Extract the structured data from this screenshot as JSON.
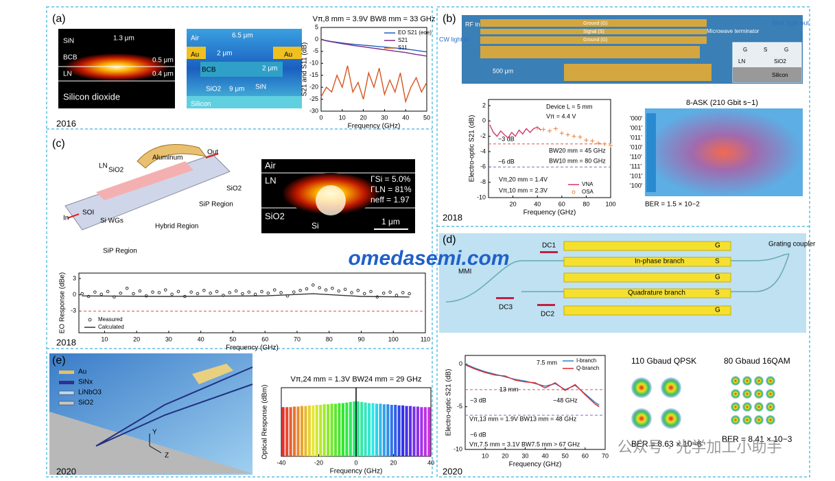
{
  "watermark": "omedasemi.com",
  "footer_watermark": "公众号 · 光学加工小助手",
  "panels": [
    {
      "label": "(a)",
      "year": "2016",
      "texts": [
        "SiN",
        "BCB",
        "LN",
        "1.3 μm",
        "0.5 μm",
        "0.4 μm",
        "Silicon dioxide",
        "Air",
        "Au",
        "Au",
        "6.5 μm",
        "2 μm",
        "2 μm",
        "BCB",
        "SiO2",
        "9 μm",
        "SiN",
        "Silicon"
      ],
      "chart": {
        "type": "line",
        "title": "Vπ,8 mm = 3.9V   BW8 mm = 33 GHz",
        "xlabel": "Frequency (GHz)",
        "ylabel": "S21 and S11 (dB)",
        "xlim": [
          0,
          50
        ],
        "ylim": [
          -30,
          5
        ],
        "xticks": [
          0,
          10,
          20,
          30,
          40,
          50
        ],
        "yticks": [
          5,
          0,
          -5,
          -10,
          -15,
          -20,
          -25,
          -30
        ],
        "legend": "upper right",
        "series": [
          {
            "name": "EO S21 (eoe)",
            "color": "#1f5fbf",
            "x": [
              0,
              2.5,
              5,
              7.5,
              10,
              12.5,
              15,
              17.5,
              20,
              22.5,
              25,
              27.5,
              30,
              32.5,
              35,
              37.5,
              40,
              42.5,
              45,
              47.5,
              50
            ],
            "values": [
              0,
              -0.5,
              -0.9,
              -1.2,
              -1.5,
              -1.8,
              -2.0,
              -2.2,
              -2.4,
              -2.6,
              -2.8,
              -3.0,
              -3.2,
              -3.4,
              -3.6,
              -3.8,
              -4.0,
              -4.3,
              -4.6,
              -4.9,
              -5.2
            ]
          },
          {
            "name": "S21",
            "color": "#7a2a8a",
            "x": [
              0,
              2.5,
              5,
              7.5,
              10,
              12.5,
              15,
              17.5,
              20,
              22.5,
              25,
              27.5,
              30,
              32.5,
              35,
              37.5,
              40,
              42.5,
              45,
              47.5,
              50
            ],
            "values": [
              0,
              -0.6,
              -1.0,
              -1.4,
              -1.8,
              -2.1,
              -2.5,
              -2.8,
              -3.1,
              -3.4,
              -3.7,
              -4.0,
              -4.3,
              -4.6,
              -4.9,
              -5.2,
              -5.5,
              -5.9,
              -6.3,
              -6.6,
              -7.0
            ]
          },
          {
            "name": "S11",
            "color": "#d9531e",
            "x": [
              0,
              2.5,
              5,
              7.5,
              10,
              12.5,
              15,
              17.5,
              20,
              22.5,
              25,
              27.5,
              30,
              32.5,
              35,
              37.5,
              40,
              42.5,
              45,
              47.5,
              50
            ],
            "values": [
              -24,
              -20,
              -22,
              -15,
              -20,
              -11,
              -22,
              -18,
              -25,
              -14,
              -20,
              -12,
              -23,
              -17,
              -22,
              -14,
              -26,
              -20,
              -16,
              -22,
              -18
            ]
          }
        ]
      }
    },
    {
      "label": "(b)",
      "year": "2018",
      "texts": [
        "RF in",
        "CW light in",
        "Ground (G)",
        "Signal (S)",
        "Ground (G)",
        "Microwave terminator",
        "Mod. light out",
        "500 μm",
        "G",
        "S",
        "G",
        "LN",
        "SiO2",
        "Silicon",
        "8-ASK (210 Gbit s−1)",
        "'000'",
        "'001'",
        "'011'",
        "'010'",
        "'110'",
        "'111'",
        "'101'",
        "'100'",
        "BER = 1.5 × 10−2"
      ],
      "chart": {
        "type": "line",
        "xlabel": "Frequency (GHz)",
        "ylabel": "Electro-optic S21 (dB)",
        "xlim": [
          0,
          100
        ],
        "ylim": [
          -10,
          2.8
        ],
        "xticks": [
          20,
          40,
          60,
          80,
          100
        ],
        "yticks": [
          2,
          0,
          -2,
          -4,
          -6,
          -8,
          -10
        ],
        "legend": "lower right",
        "ref_lines": [
          -3,
          -6
        ],
        "annotations": [
          "Device L = 5 mm",
          "Vπ = 4.4 V",
          "−3 dB",
          "−6 dB",
          "BW20 mm = 45 GHz",
          "BW10 mm = 80 GHz",
          "Vπ,20 mm = 1.4V",
          "Vπ,10 mm = 2.3V"
        ],
        "series": [
          {
            "name": "VNA",
            "color": "#d6336c",
            "x": [
              1,
              4,
              7,
              10,
              13,
              16,
              19,
              22,
              25,
              28,
              31,
              34,
              37,
              40,
              43
            ],
            "values": [
              -0.5,
              -1.5,
              -2.0,
              -1.3,
              -1.8,
              -2.2,
              -1.5,
              -2.0,
              -1.2,
              -1.7,
              -1.0,
              -1.5,
              -1.0,
              -0.8,
              -1.2
            ]
          },
          {
            "name": "OSA",
            "color": "#e8833a",
            "marker": "plus",
            "x": [
              40,
              45,
              50,
              55,
              60,
              65,
              70,
              75,
              80,
              85,
              90,
              95,
              100
            ],
            "values": [
              -0.9,
              -1.1,
              -1.3,
              -1.0,
              -1.6,
              -1.8,
              -2.0,
              -2.1,
              -2.5,
              -2.6,
              -2.9,
              -3.0,
              -3.2
            ]
          }
        ]
      }
    },
    {
      "label": "(c)",
      "year": "2018",
      "texts": [
        "Aluminum",
        "SiO2",
        "LN",
        "Out",
        "SiO2",
        "SOI",
        "In",
        "Si WGs",
        "SiP Region",
        "Hybrid Region",
        "SiP Region",
        "Air",
        "LN",
        "SiO2",
        "Si",
        "ΓSi = 5.0%",
        "ΓLN = 81%",
        "neff = 1.97",
        "1 μm"
      ],
      "chart": {
        "type": "line",
        "xlabel": "Frequency (GHz)",
        "ylabel": "EO Response (dBe)",
        "xlim": [
          2,
          110
        ],
        "ylim": [
          -7,
          4
        ],
        "xticks": [
          10,
          20,
          30,
          40,
          50,
          60,
          70,
          80,
          90,
          100,
          110
        ],
        "yticks": [
          3,
          0,
          -3
        ],
        "legend": "lower left",
        "ref_lines": [
          -3
        ],
        "series": [
          {
            "name": "Measured",
            "color": "#333333",
            "marker": "circle",
            "x": [
              3,
              5,
              7,
              9,
              11,
              13,
              15,
              17,
              19,
              21,
              23,
              25,
              27,
              29,
              31,
              33,
              35,
              37,
              39,
              41,
              43,
              45,
              47,
              49,
              51,
              53,
              55,
              57,
              59,
              61,
              63,
              65,
              67,
              69,
              71,
              73,
              75,
              77,
              79,
              81,
              83,
              85,
              87,
              89,
              91,
              93,
              95,
              97,
              99,
              101,
              103,
              105
            ],
            "values": [
              0.2,
              -0.3,
              0.5,
              0.1,
              0.6,
              -0.4,
              0.3,
              1.2,
              0.2,
              0.7,
              -0.2,
              0.5,
              0.4,
              0.9,
              0.1,
              0.6,
              -0.3,
              0.5,
              0.2,
              0.8,
              0.3,
              0.6,
              -0.1,
              0.4,
              0.7,
              0.2,
              0.5,
              0.1,
              0.6,
              0.3,
              0.9,
              0.4,
              -0.2,
              0.5,
              0.8,
              1.1,
              1.8,
              1.3,
              0.9,
              1.2,
              0.7,
              1.0,
              0.4,
              0.8,
              0.2,
              0.6,
              -0.4,
              0.3,
              0.5,
              -0.1,
              0.4,
              0.2
            ]
          },
          {
            "name": "Calculated",
            "color": "#333333",
            "x": [
              3,
              30,
              60,
              75,
              90,
              105
            ],
            "values": [
              -0.2,
              -0.3,
              -0.2,
              0.2,
              -0.3,
              -0.4
            ]
          }
        ]
      }
    },
    {
      "label": "(d)",
      "year": "2020",
      "texts": [
        "MMI",
        "DC1",
        "DC3",
        "DC2",
        "G",
        "S",
        "G",
        "S",
        "G",
        "In-phase branch",
        "Quadrature branch",
        "Grating coupler",
        "110 Gbaud QPSK",
        "80 Gbaud 16QAM",
        "BER = 8.63 × 10−6",
        "BER = 8.41 × 10−3"
      ],
      "chart": {
        "type": "line",
        "xlabel": "Frequency (GHz)",
        "ylabel": "Electro-optic S21 (dB)",
        "xlim": [
          0,
          70
        ],
        "ylim": [
          -10,
          1
        ],
        "xticks": [
          10,
          20,
          30,
          40,
          50,
          60,
          70
        ],
        "yticks": [
          0,
          -5,
          -10
        ],
        "legend": "upper right",
        "ref_lines": [
          -3,
          -6
        ],
        "annotations": [
          "7.5 mm",
          "13 mm",
          "−3 dB",
          "~48 GHz",
          "Vπ,13 mm = 1.9V  BW13 mm = 48 GHz",
          "−6 dB",
          "Vπ,7.5 mm = 3.1V  BW7.5 mm > 67 GHz"
        ],
        "series": [
          {
            "name": "I-branch",
            "color": "#2f7fc1",
            "x": [
              0,
              5,
              10,
              15,
              20,
              25,
              30,
              35,
              40,
              45,
              50,
              55,
              60,
              65,
              67
            ],
            "values": [
              0,
              -0.5,
              -0.9,
              -1.2,
              -1.5,
              -1.8,
              -2.0,
              -2.3,
              -2.6,
              -2.3,
              -3.0,
              -2.5,
              -3.5,
              -4.5,
              -4.8
            ]
          },
          {
            "name": "Q-branch",
            "color": "#e0262b",
            "x": [
              0,
              5,
              10,
              15,
              20,
              25,
              30,
              35,
              40,
              45,
              50,
              55,
              60,
              65,
              67
            ],
            "values": [
              -0.1,
              -0.6,
              -1.0,
              -1.3,
              -1.4,
              -1.9,
              -2.1,
              -2.2,
              -2.8,
              -2.2,
              -3.1,
              -2.4,
              -3.6,
              -4.7,
              -5.0
            ]
          }
        ]
      }
    },
    {
      "label": "(e)",
      "year": "2020",
      "texts": [
        "Au",
        "SiNx",
        "LiNbO3",
        "SiO2",
        "Y",
        "Z"
      ],
      "chart": {
        "type": "bar",
        "title": "Vπ,24 mm = 1.3V  BW24 mm = 29 GHz",
        "xlabel": "Frequency (GHz)",
        "ylabel": "Optical Response (dBm)",
        "xlim": [
          -40,
          40
        ],
        "ylim": [
          -60,
          0
        ],
        "xticks": [
          -40,
          -20,
          0,
          20,
          40
        ],
        "series": [
          {
            "x": [
              -39,
              -37,
              -35,
              -33,
              -31,
              -29,
              -27,
              -25,
              -23,
              -21,
              -19,
              -17,
              -15,
              -13,
              -11,
              -9,
              -7,
              -5,
              -3,
              -1,
              1,
              3,
              5,
              7,
              9,
              11,
              13,
              15,
              17,
              19,
              21,
              23,
              25,
              27,
              29,
              31,
              33,
              35,
              37,
              39
            ],
            "values": [
              -17,
              -17,
              -17,
              -16.5,
              -16.5,
              -16,
              -16,
              -15.5,
              -15.5,
              -15,
              -15,
              -14.5,
              -14.5,
              -14,
              -14,
              -13.5,
              -13.5,
              -13,
              -12.5,
              -12,
              -12,
              -12.5,
              -13,
              -13.5,
              -13.5,
              -14,
              -14,
              -14.5,
              -14.5,
              -15,
              -15,
              -15.5,
              -15.5,
              -16,
              -16,
              -16.5,
              -16.5,
              -17,
              -17,
              -17
            ]
          }
        ]
      }
    }
  ]
}
